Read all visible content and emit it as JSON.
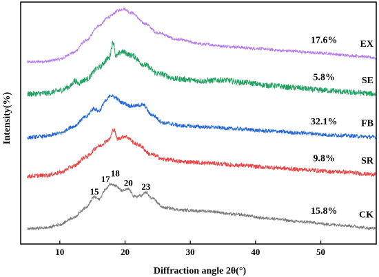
{
  "chart_data": {
    "type": "line",
    "title": "",
    "xlabel": "Diffraction angle 2θ(°)",
    "ylabel": "Intensity(%)",
    "xlim": [
      4,
      58.5
    ],
    "ylim": [
      0,
      100
    ],
    "x_ticks": [
      10,
      20,
      30,
      40,
      50
    ],
    "x_tick_labels": [
      "10",
      "20",
      "30",
      "40",
      "50"
    ],
    "y_ticks_shown": false,
    "legend": "none",
    "grid": false,
    "series": [
      {
        "name": "EX",
        "percent": "17.6%",
        "color": "#b57be8",
        "noise": 0.6,
        "points": [
          [
            5,
            75.2
          ],
          [
            8,
            75.5
          ],
          [
            10,
            76.4
          ],
          [
            12,
            79.0
          ],
          [
            14,
            84.0
          ],
          [
            16,
            90.3
          ],
          [
            17.5,
            93.8
          ],
          [
            19,
            96.5
          ],
          [
            19.8,
            97.2
          ],
          [
            21,
            95.5
          ],
          [
            23,
            91.2
          ],
          [
            25,
            87.3
          ],
          [
            28,
            84.5
          ],
          [
            32,
            82.6
          ],
          [
            36,
            81.6
          ],
          [
            40,
            80.8
          ],
          [
            45,
            79.8
          ],
          [
            50,
            78.9
          ],
          [
            55,
            77.8
          ],
          [
            58.5,
            77.0
          ]
        ]
      },
      {
        "name": "SE",
        "percent": "5.8%",
        "color": "#1fa060",
        "noise": 1.2,
        "points": [
          [
            5,
            62.0
          ],
          [
            8,
            62.3
          ],
          [
            10,
            63.4
          ],
          [
            11.5,
            65.0
          ],
          [
            12.3,
            67.5
          ],
          [
            12.8,
            66.5
          ],
          [
            14,
            68.0
          ],
          [
            16,
            73.0
          ],
          [
            17.5,
            76.8
          ],
          [
            18.2,
            83.5
          ],
          [
            18.6,
            77.5
          ],
          [
            19.5,
            79.5
          ],
          [
            21,
            78.0
          ],
          [
            23,
            74.0
          ],
          [
            25,
            70.5
          ],
          [
            28,
            68.2
          ],
          [
            32,
            67.4
          ],
          [
            35,
            67.8
          ],
          [
            38,
            66.8
          ],
          [
            42,
            65.6
          ],
          [
            46,
            64.6
          ],
          [
            50,
            63.6
          ],
          [
            55,
            62.6
          ],
          [
            58.5,
            62.0
          ]
        ]
      },
      {
        "name": "FB",
        "percent": "32.1%",
        "color": "#2266d6",
        "noise": 0.8,
        "points": [
          [
            5,
            44.0
          ],
          [
            8,
            44.6
          ],
          [
            10,
            45.8
          ],
          [
            12,
            48.5
          ],
          [
            14,
            52.5
          ],
          [
            15.2,
            56.0
          ],
          [
            16,
            55.0
          ],
          [
            17,
            59.0
          ],
          [
            17.8,
            61.5
          ],
          [
            18.5,
            60.5
          ],
          [
            19.5,
            58.5
          ],
          [
            21,
            57.0
          ],
          [
            22.8,
            57.5
          ],
          [
            24,
            53.5
          ],
          [
            26,
            50.0
          ],
          [
            29,
            48.8
          ],
          [
            33,
            48.3
          ],
          [
            37,
            47.6
          ],
          [
            42,
            46.7
          ],
          [
            47,
            45.9
          ],
          [
            52,
            45.0
          ],
          [
            58.5,
            44.2
          ]
        ]
      },
      {
        "name": "SR",
        "percent": "9.8%",
        "color": "#e84444",
        "noise": 0.9,
        "points": [
          [
            5,
            28.0
          ],
          [
            8,
            28.4
          ],
          [
            10,
            29.5
          ],
          [
            12,
            32.0
          ],
          [
            14,
            36.0
          ],
          [
            16,
            40.5
          ],
          [
            17.5,
            43.0
          ],
          [
            18.3,
            47.5
          ],
          [
            18.8,
            43.5
          ],
          [
            20,
            44.5
          ],
          [
            22,
            41.0
          ],
          [
            24,
            37.0
          ],
          [
            26,
            35.0
          ],
          [
            29,
            34.0
          ],
          [
            33,
            33.4
          ],
          [
            37,
            32.6
          ],
          [
            42,
            31.7
          ],
          [
            47,
            30.8
          ],
          [
            52,
            29.9
          ],
          [
            58.5,
            28.8
          ]
        ]
      },
      {
        "name": "CK",
        "percent": "15.8%",
        "color": "#7a7a7a",
        "noise": 0.6,
        "points": [
          [
            5,
            6.3
          ],
          [
            8,
            6.7
          ],
          [
            10,
            8.0
          ],
          [
            12,
            10.8
          ],
          [
            14,
            15.0
          ],
          [
            15.3,
            19.5
          ],
          [
            16,
            18.5
          ],
          [
            17,
            22.5
          ],
          [
            17.8,
            25.0
          ],
          [
            18.5,
            24.2
          ],
          [
            19.5,
            22.0
          ],
          [
            20.5,
            22.6
          ],
          [
            21.5,
            19.5
          ],
          [
            22.5,
            20.0
          ],
          [
            23.2,
            21.4
          ],
          [
            24,
            19.0
          ],
          [
            26,
            15.0
          ],
          [
            29,
            14.0
          ],
          [
            33,
            13.5
          ],
          [
            37,
            12.2
          ],
          [
            42,
            10.6
          ],
          [
            47,
            9.2
          ],
          [
            52,
            8.0
          ],
          [
            58.5,
            6.5
          ]
        ]
      }
    ],
    "peak_annotations": [
      {
        "text": "15",
        "x": 15.3,
        "y": 20.5
      },
      {
        "text": "17",
        "x": 17.0,
        "y": 25.5
      },
      {
        "text": "18",
        "x": 18.5,
        "y": 28.0
      },
      {
        "text": "20",
        "x": 20.5,
        "y": 24.0
      },
      {
        "text": "23",
        "x": 23.2,
        "y": 22.5
      }
    ]
  }
}
